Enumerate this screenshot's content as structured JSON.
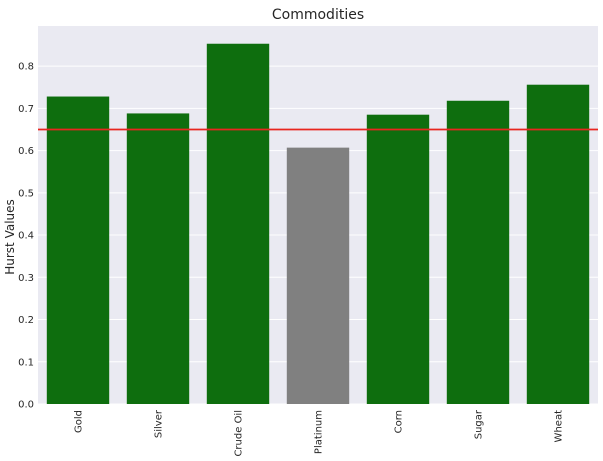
{
  "chart_data": {
    "type": "bar",
    "title": "Commodities",
    "xlabel": "",
    "ylabel": "Hurst Values",
    "categories": [
      "Gold",
      "Silver",
      "Crude Oil",
      "Platinum",
      "Corn",
      "Sugar",
      "Wheat"
    ],
    "values": [
      0.728,
      0.688,
      0.853,
      0.607,
      0.685,
      0.718,
      0.756
    ],
    "bar_colors": [
      "#0e6e0e",
      "#0e6e0e",
      "#0e6e0e",
      "#808080",
      "#0e6e0e",
      "#0e6e0e",
      "#0e6e0e"
    ],
    "reference_line": {
      "value": 0.65,
      "color": "#e8261f"
    },
    "ylim": [
      0,
      0.895
    ],
    "yticks": [
      0.0,
      0.1,
      0.2,
      0.3,
      0.4,
      0.5,
      0.6,
      0.7,
      0.8
    ],
    "ytick_labels": [
      "0.0",
      "0.1",
      "0.2",
      "0.3",
      "0.4",
      "0.5",
      "0.6",
      "0.7",
      "0.8"
    ],
    "grid": true,
    "background_color": "#eaeaf2",
    "grid_color": "#ffffff",
    "x_tick_rotation": "vertical"
  }
}
